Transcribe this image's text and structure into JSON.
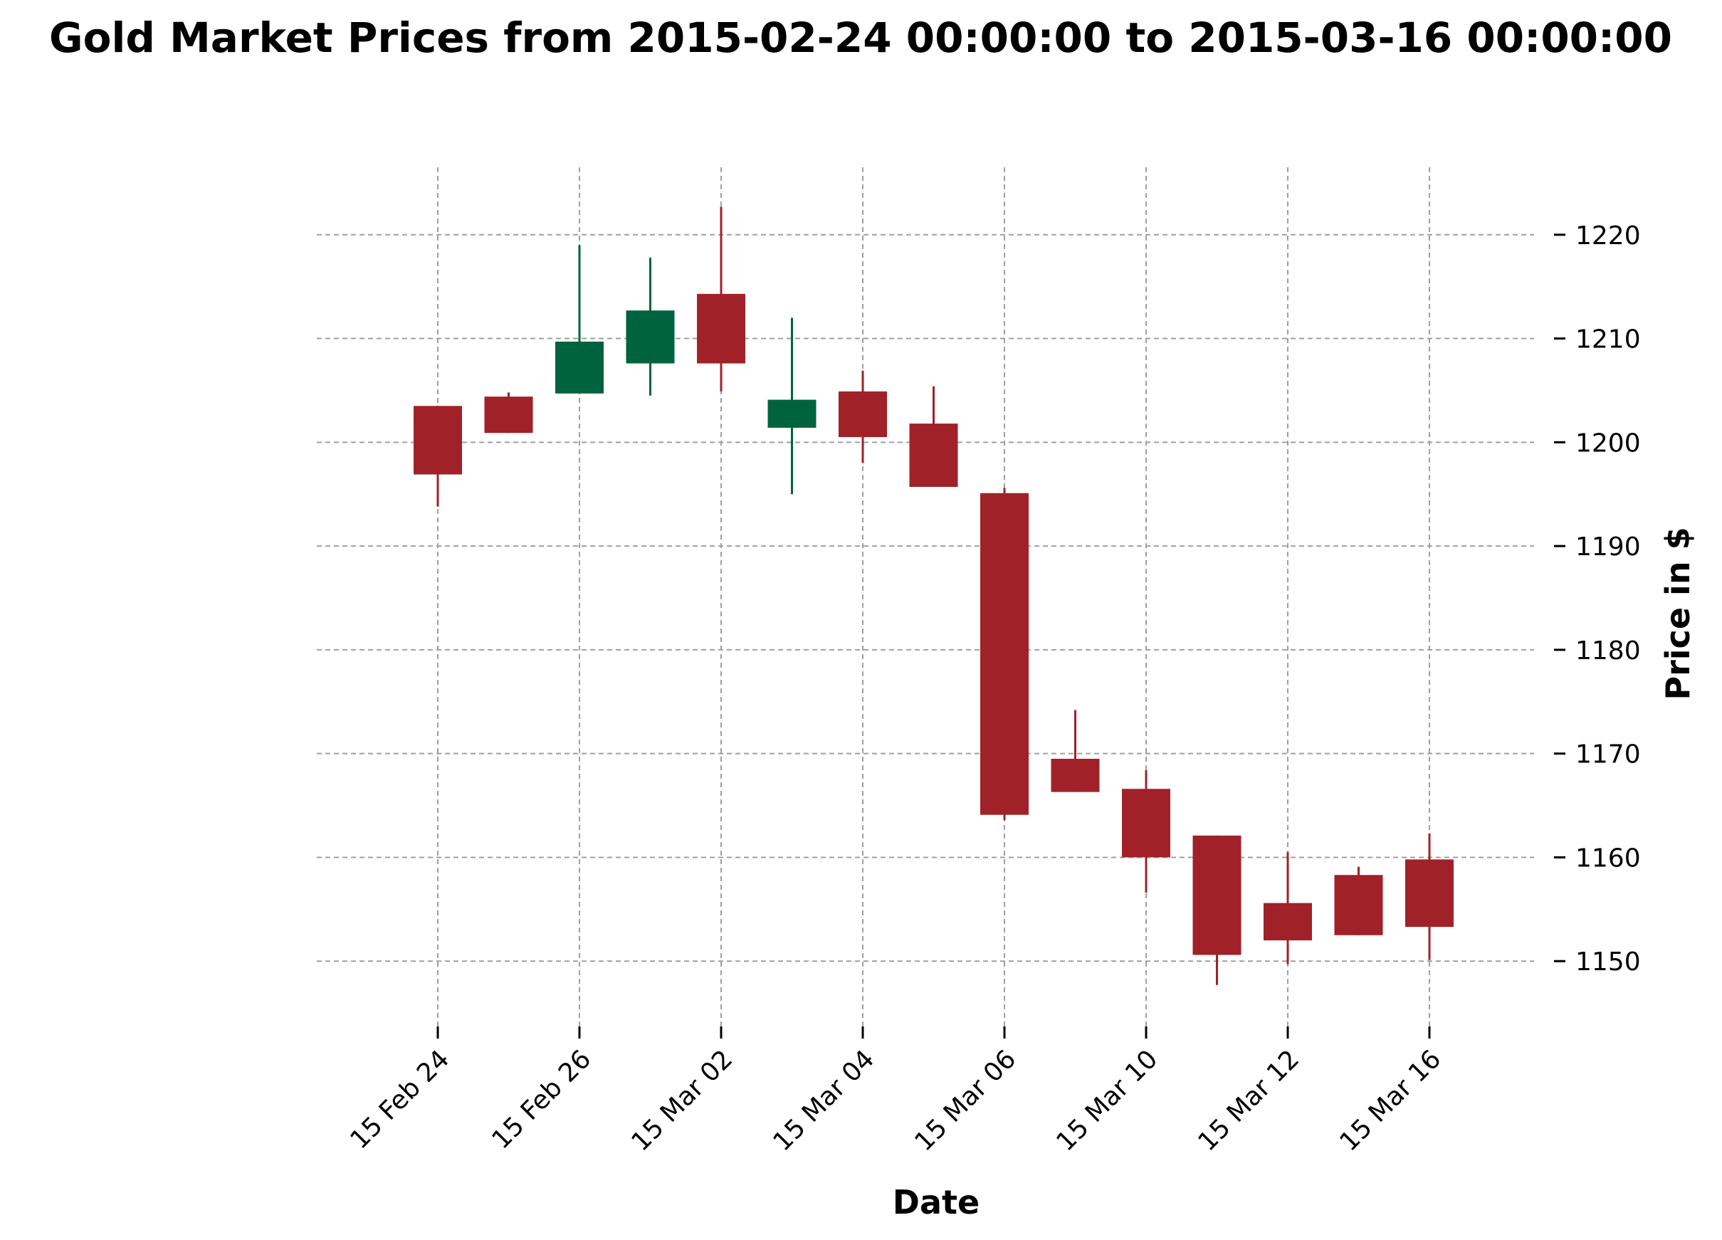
{
  "chart_data": {
    "type": "candlestick",
    "title": "Gold Market Prices from 2015-02-24 00:00:00 to 2015-03-16 00:00:00",
    "xlabel": "Date",
    "ylabel": "Price in $",
    "ylim": [
      1143.5,
      1226.5
    ],
    "yticks": [
      1150,
      1160,
      1170,
      1180,
      1190,
      1200,
      1210,
      1220
    ],
    "xticks": [
      {
        "label": "15 Feb 24",
        "index": 0
      },
      {
        "label": "15 Feb 26",
        "index": 2
      },
      {
        "label": "15 Mar 02",
        "index": 4
      },
      {
        "label": "15 Mar 04",
        "index": 6
      },
      {
        "label": "15 Mar 06",
        "index": 8
      },
      {
        "label": "15 Mar 10",
        "index": 10
      },
      {
        "label": "15 Mar 12",
        "index": 12
      },
      {
        "label": "15 Mar 16",
        "index": 14
      }
    ],
    "grid": true,
    "colors": {
      "up": "#006340",
      "down": "#a02128"
    },
    "candles": [
      {
        "date": "2015-02-24",
        "open": 1203.5,
        "high": 1203.5,
        "low": 1193.8,
        "close": 1196.9
      },
      {
        "date": "2015-02-25",
        "open": 1204.4,
        "high": 1204.8,
        "low": 1200.9,
        "close": 1200.9
      },
      {
        "date": "2015-02-26",
        "open": 1204.7,
        "high": 1219.0,
        "low": 1204.7,
        "close": 1209.7
      },
      {
        "date": "2015-02-27",
        "open": 1207.6,
        "high": 1217.8,
        "low": 1204.5,
        "close": 1212.7
      },
      {
        "date": "2015-03-02",
        "open": 1214.3,
        "high": 1222.7,
        "low": 1204.9,
        "close": 1207.6
      },
      {
        "date": "2015-03-03",
        "open": 1201.4,
        "high": 1212.0,
        "low": 1195.0,
        "close": 1204.1
      },
      {
        "date": "2015-03-04",
        "open": 1204.9,
        "high": 1206.9,
        "low": 1198.0,
        "close": 1200.5
      },
      {
        "date": "2015-03-05",
        "open": 1201.8,
        "high": 1205.4,
        "low": 1195.7,
        "close": 1195.7
      },
      {
        "date": "2015-03-06",
        "open": 1195.1,
        "high": 1195.6,
        "low": 1163.6,
        "close": 1164.1
      },
      {
        "date": "2015-03-09",
        "open": 1169.5,
        "high": 1174.2,
        "low": 1166.3,
        "close": 1166.3
      },
      {
        "date": "2015-03-10",
        "open": 1166.6,
        "high": 1168.4,
        "low": 1156.6,
        "close": 1160.0
      },
      {
        "date": "2015-03-11",
        "open": 1162.1,
        "high": 1162.1,
        "low": 1147.7,
        "close": 1150.6
      },
      {
        "date": "2015-03-12",
        "open": 1155.6,
        "high": 1160.5,
        "low": 1149.7,
        "close": 1152.0
      },
      {
        "date": "2015-03-13",
        "open": 1158.3,
        "high": 1159.1,
        "low": 1152.5,
        "close": 1152.5
      },
      {
        "date": "2015-03-16",
        "open": 1159.8,
        "high": 1162.3,
        "low": 1150.1,
        "close": 1153.3
      }
    ]
  }
}
